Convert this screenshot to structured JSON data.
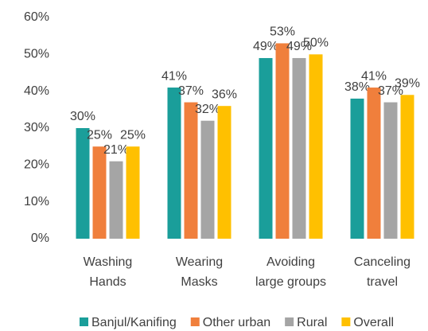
{
  "chart_data": {
    "type": "bar",
    "categories": [
      [
        "Washing",
        "Hands"
      ],
      [
        "Wearing",
        "Masks"
      ],
      [
        "Avoiding",
        "large groups"
      ],
      [
        "Canceling",
        "travel"
      ]
    ],
    "series": [
      {
        "name": "Banjul/Kanifing",
        "color": "#1a9e9a",
        "values": [
          30,
          41,
          49,
          38
        ],
        "value_labels": [
          "30%",
          "41%",
          "49%",
          "38%"
        ]
      },
      {
        "name": "Other urban",
        "color": "#f07f3c",
        "values": [
          25,
          37,
          53,
          41
        ],
        "value_labels": [
          "25%",
          "37%",
          "53%",
          "41%"
        ]
      },
      {
        "name": "Rural",
        "color": "#a5a5a5",
        "values": [
          21,
          32,
          49,
          37
        ],
        "value_labels": [
          "21%",
          "32%",
          "49%",
          "37%"
        ]
      },
      {
        "name": "Overall",
        "color": "#ffc000",
        "values": [
          25,
          36,
          50,
          39
        ],
        "value_labels": [
          "25%",
          "36%",
          "50%",
          "39%"
        ]
      }
    ],
    "ylim": [
      0,
      60
    ],
    "yticks": [
      {
        "value": 0,
        "label": "0%"
      },
      {
        "value": 10,
        "label": "10%"
      },
      {
        "value": 20,
        "label": "20%"
      },
      {
        "value": 30,
        "label": "30%"
      },
      {
        "value": 40,
        "label": "40%"
      },
      {
        "value": 50,
        "label": "50%"
      },
      {
        "value": 60,
        "label": "60%"
      }
    ],
    "legend": "bottom"
  }
}
